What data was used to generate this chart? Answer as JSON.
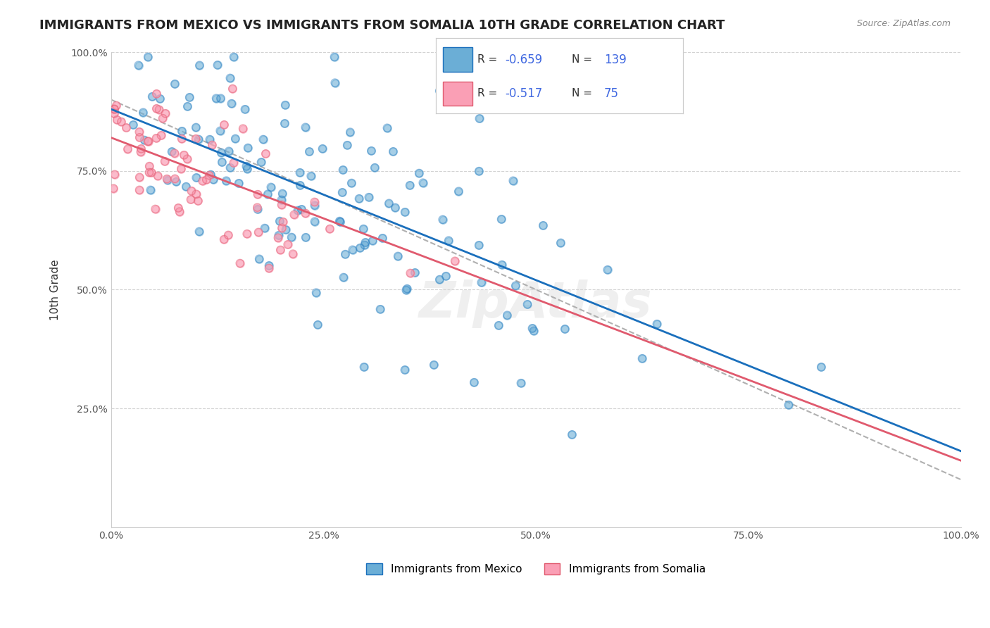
{
  "title": "IMMIGRANTS FROM MEXICO VS IMMIGRANTS FROM SOMALIA 10TH GRADE CORRELATION CHART",
  "source": "Source: ZipAtlas.com",
  "xlabel_bottom": "",
  "ylabel": "10th Grade",
  "legend_label_blue": "Immigrants from Mexico",
  "legend_label_pink": "Immigrants from Somalia",
  "R_blue": -0.659,
  "N_blue": 139,
  "R_pink": -0.517,
  "N_pink": 75,
  "blue_color": "#6baed6",
  "pink_color": "#fa9fb5",
  "trend_blue": "#1a6fbc",
  "trend_pink": "#e05a6e",
  "trend_gray": "#b0b0b0",
  "bg_color": "#ffffff",
  "grid_color": "#d3d3d3",
  "title_fontsize": 13,
  "axis_label_fontsize": 11,
  "tick_fontsize": 10,
  "legend_fontsize": 12,
  "watermark": "ZipAtlas",
  "xlim": [
    0,
    1
  ],
  "ylim": [
    0,
    1
  ],
  "xticks": [
    0,
    0.25,
    0.5,
    0.75,
    1.0
  ],
  "yticks": [
    0,
    0.25,
    0.5,
    0.75,
    1.0
  ],
  "xtick_labels": [
    "0.0%",
    "25.0%",
    "50.0%",
    "75.0%",
    "100.0%"
  ],
  "ytick_labels": [
    "",
    "25.0%",
    "50.0%",
    "75.0%",
    "100.0%"
  ],
  "blue_seed": 42,
  "pink_seed": 7,
  "blue_intercept": 0.88,
  "blue_slope": -0.72,
  "pink_intercept": 0.82,
  "pink_slope": -0.68,
  "gray_intercept": 0.9,
  "gray_slope": -0.8
}
